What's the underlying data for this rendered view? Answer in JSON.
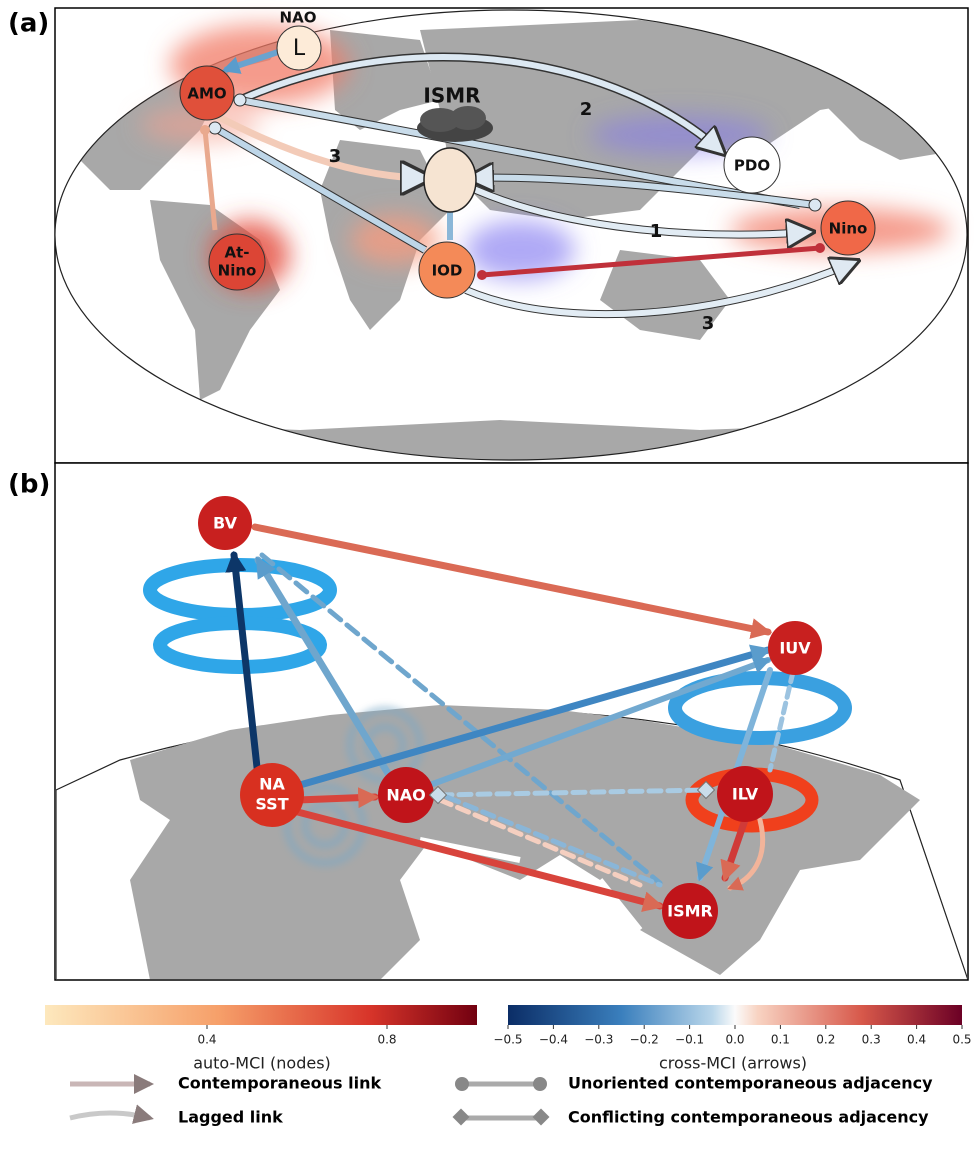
{
  "panel_a": {
    "label": "(a)",
    "nodes": [
      {
        "label": "NAO"
      },
      {
        "label": "L"
      },
      {
        "label": "AMO"
      },
      {
        "lines": [
          "At-",
          "Nino"
        ]
      },
      {
        "label": "ISMR"
      },
      {
        "label": "PDO"
      },
      {
        "label": "Nino"
      },
      {
        "label": "IOD"
      }
    ],
    "link_labels": [
      "2",
      "3",
      "1",
      "3"
    ]
  },
  "panel_b": {
    "label": "(b)",
    "nodes": [
      {
        "label": "BV"
      },
      {
        "label": "IUV"
      },
      {
        "lines": [
          "NA",
          "SST"
        ]
      },
      {
        "label": "NAO"
      },
      {
        "label": "ILV"
      },
      {
        "label": "ISMR"
      }
    ]
  },
  "colorbars": [
    {
      "label": "auto-MCI (nodes)",
      "lim": [
        0.04,
        1.0
      ],
      "ticks": [
        0.4,
        0.8
      ]
    },
    {
      "label": "cross-MCI (arrows)",
      "lim": [
        -0.5,
        0.5
      ],
      "ticks": [
        {
          "value": -0.5,
          "label": "−0.5"
        },
        {
          "value": -0.4,
          "label": "−0.4"
        },
        {
          "value": -0.3,
          "label": "−0.3"
        },
        {
          "value": -0.2,
          "label": "−0.2"
        },
        {
          "value": -0.1,
          "label": "−0.1"
        },
        {
          "value": 0,
          "label": "0.0"
        },
        0.1,
        0.2,
        0.3,
        0.4,
        0.5
      ]
    }
  ],
  "legend": [
    "Contemporaneous link",
    "Lagged link",
    "Unoriented contemporaneous adjacency",
    "Conflicting contemporaneous adjacency"
  ]
}
